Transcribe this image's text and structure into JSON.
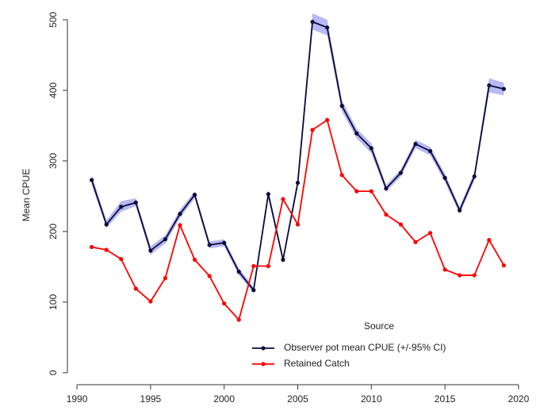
{
  "chart_data": {
    "type": "line",
    "ylabel": "Mean CPUE",
    "x": [
      1991,
      1992,
      1993,
      1994,
      1995,
      1996,
      1997,
      1998,
      1999,
      2000,
      2001,
      2002,
      2003,
      2004,
      2005,
      2006,
      2007,
      2008,
      2009,
      2010,
      2011,
      2012,
      2013,
      2014,
      2015,
      2016,
      2017,
      2018,
      2019
    ],
    "series": [
      {
        "name": "Observer pot mean CPUE (+/-95% CI)",
        "color": "#0a0a3a",
        "band_color": "#b8b8f2",
        "values": [
          273,
          210,
          235,
          241,
          173,
          189,
          225,
          252,
          181,
          184,
          143,
          117,
          253,
          160,
          269,
          497,
          489,
          378,
          339,
          318,
          261,
          283,
          324,
          314,
          276,
          230,
          278,
          407,
          402
        ],
        "ci_lower": [
          266,
          205,
          228,
          236,
          167,
          183,
          219,
          247,
          176,
          179,
          138,
          113,
          247,
          156,
          263,
          486,
          478,
          370,
          332,
          311,
          256,
          278,
          318,
          308,
          270,
          225,
          272,
          397,
          393
        ],
        "ci_upper": [
          280,
          216,
          243,
          247,
          179,
          195,
          231,
          257,
          186,
          189,
          148,
          121,
          259,
          164,
          275,
          509,
          500,
          386,
          346,
          325,
          266,
          288,
          330,
          320,
          282,
          235,
          284,
          417,
          411
        ]
      },
      {
        "name": "Retained Catch",
        "color": "#ff0000",
        "values": [
          178,
          174,
          161,
          119,
          101,
          134,
          209,
          160,
          137,
          98,
          75,
          151,
          151,
          246,
          210,
          344,
          358,
          280,
          257,
          257,
          224,
          210,
          185,
          198,
          146,
          138,
          138,
          188,
          152
        ]
      }
    ],
    "xlim": [
      1989.35,
      2020.65
    ],
    "ylim": [
      -17,
      519
    ],
    "xticks": [
      1990,
      1995,
      2000,
      2005,
      2010,
      2015,
      2020
    ],
    "yticks": [
      0,
      100,
      200,
      300,
      400,
      500
    ],
    "legend": {
      "title": "Source",
      "position": "bottom-right"
    }
  }
}
